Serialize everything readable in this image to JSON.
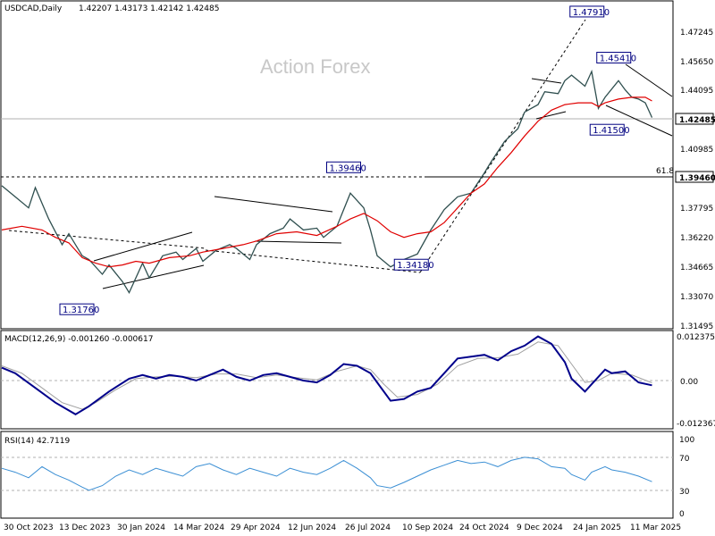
{
  "header": {
    "symbol": "USDCAD,Daily",
    "ohlc": "1.42207 1.43173 1.42142 1.42485"
  },
  "watermark": "Action Forex",
  "colors": {
    "price": "#2f4f4f",
    "ma": "#e00000",
    "macd": "#00008b",
    "signal": "#a0a0a0",
    "rsi": "#3b8fd4",
    "label_border": "#000080",
    "grid": "#b0b0b0"
  },
  "chart_data": [
    {
      "type": "line",
      "panel": "price",
      "price_axis": [
        "1.47245",
        "1.45650",
        "1.44095",
        "1.42485",
        "1.40985",
        "1.39460",
        "1.37795",
        "1.36220",
        "1.34665",
        "1.33070",
        "1.31495"
      ],
      "ylim": [
        1.3109,
        1.4878
      ],
      "current_price": "1.42485",
      "fib_level": {
        "label": "61.8",
        "value": "1.39460"
      },
      "annotations": [
        {
          "text": "1.47910",
          "x": 87.3,
          "y": 1.4791
        },
        {
          "text": "1.45410",
          "x": 91.3,
          "y": 1.4541
        },
        {
          "text": "1.41500",
          "x": 90.3,
          "y": 1.415
        },
        {
          "text": "1.39460",
          "x": 51.0,
          "y": 1.3946
        },
        {
          "text": "1.34180",
          "x": 61.1,
          "y": 1.3418
        },
        {
          "text": "1.31760",
          "x": 11.2,
          "y": 1.3176
        }
      ],
      "series": [
        {
          "values": [
            [
              0,
              1.388
            ],
            [
              2,
              1.382
            ],
            [
              4,
              1.376
            ],
            [
              5,
              1.387
            ],
            [
              7,
              1.37
            ],
            [
              9,
              1.356
            ],
            [
              10,
              1.362
            ],
            [
              12,
              1.35
            ],
            [
              13,
              1.348
            ],
            [
              15,
              1.34
            ],
            [
              16,
              1.345
            ],
            [
              18,
              1.336
            ],
            [
              19,
              1.33
            ],
            [
              21,
              1.346
            ],
            [
              22,
              1.338
            ],
            [
              24,
              1.35
            ],
            [
              26,
              1.352
            ],
            [
              27,
              1.348
            ],
            [
              29,
              1.354
            ],
            [
              30,
              1.347
            ],
            [
              32,
              1.353
            ],
            [
              34,
              1.356
            ],
            [
              35,
              1.354
            ],
            [
              37,
              1.348
            ],
            [
              38,
              1.356
            ],
            [
              40,
              1.362
            ],
            [
              42,
              1.365
            ],
            [
              43,
              1.37
            ],
            [
              45,
              1.364
            ],
            [
              47,
              1.365
            ],
            [
              48,
              1.36
            ],
            [
              50,
              1.366
            ],
            [
              52,
              1.384
            ],
            [
              54,
              1.376
            ],
            [
              55,
              1.364
            ],
            [
              56,
              1.35
            ],
            [
              58,
              1.344
            ],
            [
              60,
              1.348
            ],
            [
              62,
              1.351
            ],
            [
              64,
              1.364
            ],
            [
              66,
              1.375
            ],
            [
              68,
              1.382
            ],
            [
              70,
              1.384
            ],
            [
              72,
              1.395
            ],
            [
              73,
              1.401
            ],
            [
              75,
              1.412
            ],
            [
              77,
              1.419
            ],
            [
              78,
              1.428
            ],
            [
              80,
              1.432
            ],
            [
              81,
              1.439
            ],
            [
              83,
              1.438
            ],
            [
              84,
              1.445
            ],
            [
              85,
              1.448
            ],
            [
              87,
              1.442
            ],
            [
              88,
              1.45
            ],
            [
              89,
              1.43
            ],
            [
              90,
              1.436
            ],
            [
              92,
              1.445
            ],
            [
              93,
              1.44
            ],
            [
              94,
              1.436
            ],
            [
              95,
              1.435
            ],
            [
              96,
              1.433
            ],
            [
              97,
              1.425
            ]
          ]
        },
        {
          "values": [
            [
              0,
              1.364
            ],
            [
              3,
              1.366
            ],
            [
              6,
              1.364
            ],
            [
              8,
              1.36
            ],
            [
              10,
              1.357
            ],
            [
              12,
              1.349
            ],
            [
              14,
              1.346
            ],
            [
              16,
              1.344
            ],
            [
              18,
              1.345
            ],
            [
              20,
              1.347
            ],
            [
              22,
              1.346
            ],
            [
              25,
              1.349
            ],
            [
              28,
              1.35
            ],
            [
              30,
              1.352
            ],
            [
              33,
              1.354
            ],
            [
              36,
              1.356
            ],
            [
              38,
              1.358
            ],
            [
              41,
              1.362
            ],
            [
              44,
              1.363
            ],
            [
              47,
              1.361
            ],
            [
              50,
              1.366
            ],
            [
              52,
              1.37
            ],
            [
              54,
              1.373
            ],
            [
              56,
              1.369
            ],
            [
              58,
              1.363
            ],
            [
              60,
              1.36
            ],
            [
              62,
              1.362
            ],
            [
              64,
              1.363
            ],
            [
              66,
              1.368
            ],
            [
              68,
              1.376
            ],
            [
              70,
              1.384
            ],
            [
              72,
              1.389
            ],
            [
              74,
              1.398
            ],
            [
              76,
              1.406
            ],
            [
              78,
              1.415
            ],
            [
              80,
              1.423
            ],
            [
              82,
              1.429
            ],
            [
              84,
              1.432
            ],
            [
              86,
              1.433
            ],
            [
              88,
              1.433
            ],
            [
              89,
              1.431
            ],
            [
              90,
              1.433
            ],
            [
              92,
              1.435
            ],
            [
              94,
              1.436
            ],
            [
              96,
              1.436
            ],
            [
              97,
              1.434
            ]
          ]
        }
      ]
    },
    {
      "type": "line",
      "panel": "macd",
      "title": "MACD(12,26,9) -0.001260 -0.000617",
      "axis_labels": [
        "0.012375",
        "0.00",
        "-0.012367"
      ],
      "ylim": [
        -0.0124,
        0.0124
      ],
      "series": [
        {
          "values": [
            [
              0,
              0.0035
            ],
            [
              2,
              0.002
            ],
            [
              5,
              -0.002
            ],
            [
              8,
              -0.006
            ],
            [
              11,
              -0.0092
            ],
            [
              13,
              -0.007
            ],
            [
              16,
              -0.003
            ],
            [
              19,
              0.0005
            ],
            [
              21,
              0.0015
            ],
            [
              23,
              0.0005
            ],
            [
              25,
              0.0015
            ],
            [
              27,
              0.001
            ],
            [
              29,
              0.0
            ],
            [
              31,
              0.0015
            ],
            [
              33,
              0.003
            ],
            [
              35,
              0.001
            ],
            [
              37,
              0.0
            ],
            [
              39,
              0.0015
            ],
            [
              41,
              0.002
            ],
            [
              43,
              0.001
            ],
            [
              45,
              0.0
            ],
            [
              47,
              -0.0005
            ],
            [
              49,
              0.0015
            ],
            [
              51,
              0.0045
            ],
            [
              53,
              0.004
            ],
            [
              55,
              0.002
            ],
            [
              56,
              -0.0005
            ],
            [
              58,
              -0.0055
            ],
            [
              60,
              -0.005
            ],
            [
              62,
              -0.003
            ],
            [
              64,
              -0.002
            ],
            [
              66,
              0.002
            ],
            [
              68,
              0.006
            ],
            [
              70,
              0.0065
            ],
            [
              72,
              0.007
            ],
            [
              74,
              0.0055
            ],
            [
              76,
              0.008
            ],
            [
              78,
              0.0095
            ],
            [
              80,
              0.012
            ],
            [
              82,
              0.01
            ],
            [
              84,
              0.005
            ],
            [
              85,
              0.0005
            ],
            [
              87,
              -0.003
            ],
            [
              88,
              -0.001
            ],
            [
              90,
              0.003
            ],
            [
              91,
              0.002
            ],
            [
              93,
              0.0025
            ],
            [
              95,
              -0.0005
            ],
            [
              97,
              -0.0013
            ]
          ]
        },
        {
          "values": [
            [
              0,
              0.004
            ],
            [
              3,
              0.002
            ],
            [
              6,
              -0.002
            ],
            [
              9,
              -0.006
            ],
            [
              12,
              -0.0078
            ],
            [
              14,
              -0.006
            ],
            [
              17,
              -0.0025
            ],
            [
              20,
              0.0005
            ],
            [
              23,
              0.001
            ],
            [
              26,
              0.0012
            ],
            [
              29,
              0.0008
            ],
            [
              32,
              0.0018
            ],
            [
              35,
              0.0018
            ],
            [
              38,
              0.0008
            ],
            [
              41,
              0.0015
            ],
            [
              44,
              0.0008
            ],
            [
              47,
              0.0002
            ],
            [
              50,
              0.0025
            ],
            [
              53,
              0.004
            ],
            [
              55,
              0.003
            ],
            [
              57,
              -0.001
            ],
            [
              59,
              -0.0045
            ],
            [
              62,
              -0.0038
            ],
            [
              65,
              -0.001
            ],
            [
              68,
              0.004
            ],
            [
              71,
              0.006
            ],
            [
              74,
              0.0062
            ],
            [
              77,
              0.0072
            ],
            [
              80,
              0.0105
            ],
            [
              83,
              0.0095
            ],
            [
              85,
              0.0045
            ],
            [
              87,
              -0.0005
            ],
            [
              89,
              0.0
            ],
            [
              91,
              0.002
            ],
            [
              94,
              0.0015
            ],
            [
              97,
              -0.0006
            ]
          ]
        }
      ]
    },
    {
      "type": "line",
      "panel": "rsi",
      "title": "RSI(14) 42.7119",
      "axis_labels": [
        "100",
        "70",
        "30",
        "0"
      ],
      "ylim": [
        0,
        100
      ],
      "levels": [
        70,
        30
      ],
      "series": [
        {
          "values": [
            [
              0,
              60
            ],
            [
              2,
              55
            ],
            [
              4,
              48
            ],
            [
              6,
              62
            ],
            [
              8,
              52
            ],
            [
              10,
              45
            ],
            [
              12,
              36
            ],
            [
              13,
              32
            ],
            [
              15,
              38
            ],
            [
              17,
              50
            ],
            [
              19,
              58
            ],
            [
              21,
              52
            ],
            [
              23,
              60
            ],
            [
              25,
              55
            ],
            [
              27,
              50
            ],
            [
              29,
              62
            ],
            [
              31,
              66
            ],
            [
              33,
              58
            ],
            [
              35,
              52
            ],
            [
              37,
              60
            ],
            [
              39,
              55
            ],
            [
              41,
              50
            ],
            [
              43,
              60
            ],
            [
              45,
              55
            ],
            [
              47,
              52
            ],
            [
              49,
              60
            ],
            [
              51,
              70
            ],
            [
              53,
              60
            ],
            [
              55,
              48
            ],
            [
              56,
              38
            ],
            [
              58,
              35
            ],
            [
              60,
              42
            ],
            [
              62,
              50
            ],
            [
              64,
              58
            ],
            [
              66,
              64
            ],
            [
              68,
              70
            ],
            [
              70,
              66
            ],
            [
              72,
              68
            ],
            [
              74,
              62
            ],
            [
              76,
              70
            ],
            [
              78,
              74
            ],
            [
              80,
              72
            ],
            [
              82,
              62
            ],
            [
              84,
              60
            ],
            [
              85,
              52
            ],
            [
              87,
              45
            ],
            [
              88,
              55
            ],
            [
              90,
              62
            ],
            [
              91,
              58
            ],
            [
              93,
              55
            ],
            [
              95,
              50
            ],
            [
              97,
              43
            ]
          ]
        }
      ]
    },
    {
      "type": "line",
      "panel": "time-axis",
      "x_tick_labels": [
        "30 Oct 2023",
        "13 Dec 2023",
        "30 Jan 2024",
        "14 Mar 2024",
        "29 Apr 2024",
        "12 Jun 2024",
        "26 Jul 2024",
        "10 Sep 2024",
        "24 Oct 2024",
        "9 Dec 2024",
        "24 Jan 2025",
        "11 Mar 2025"
      ]
    }
  ]
}
